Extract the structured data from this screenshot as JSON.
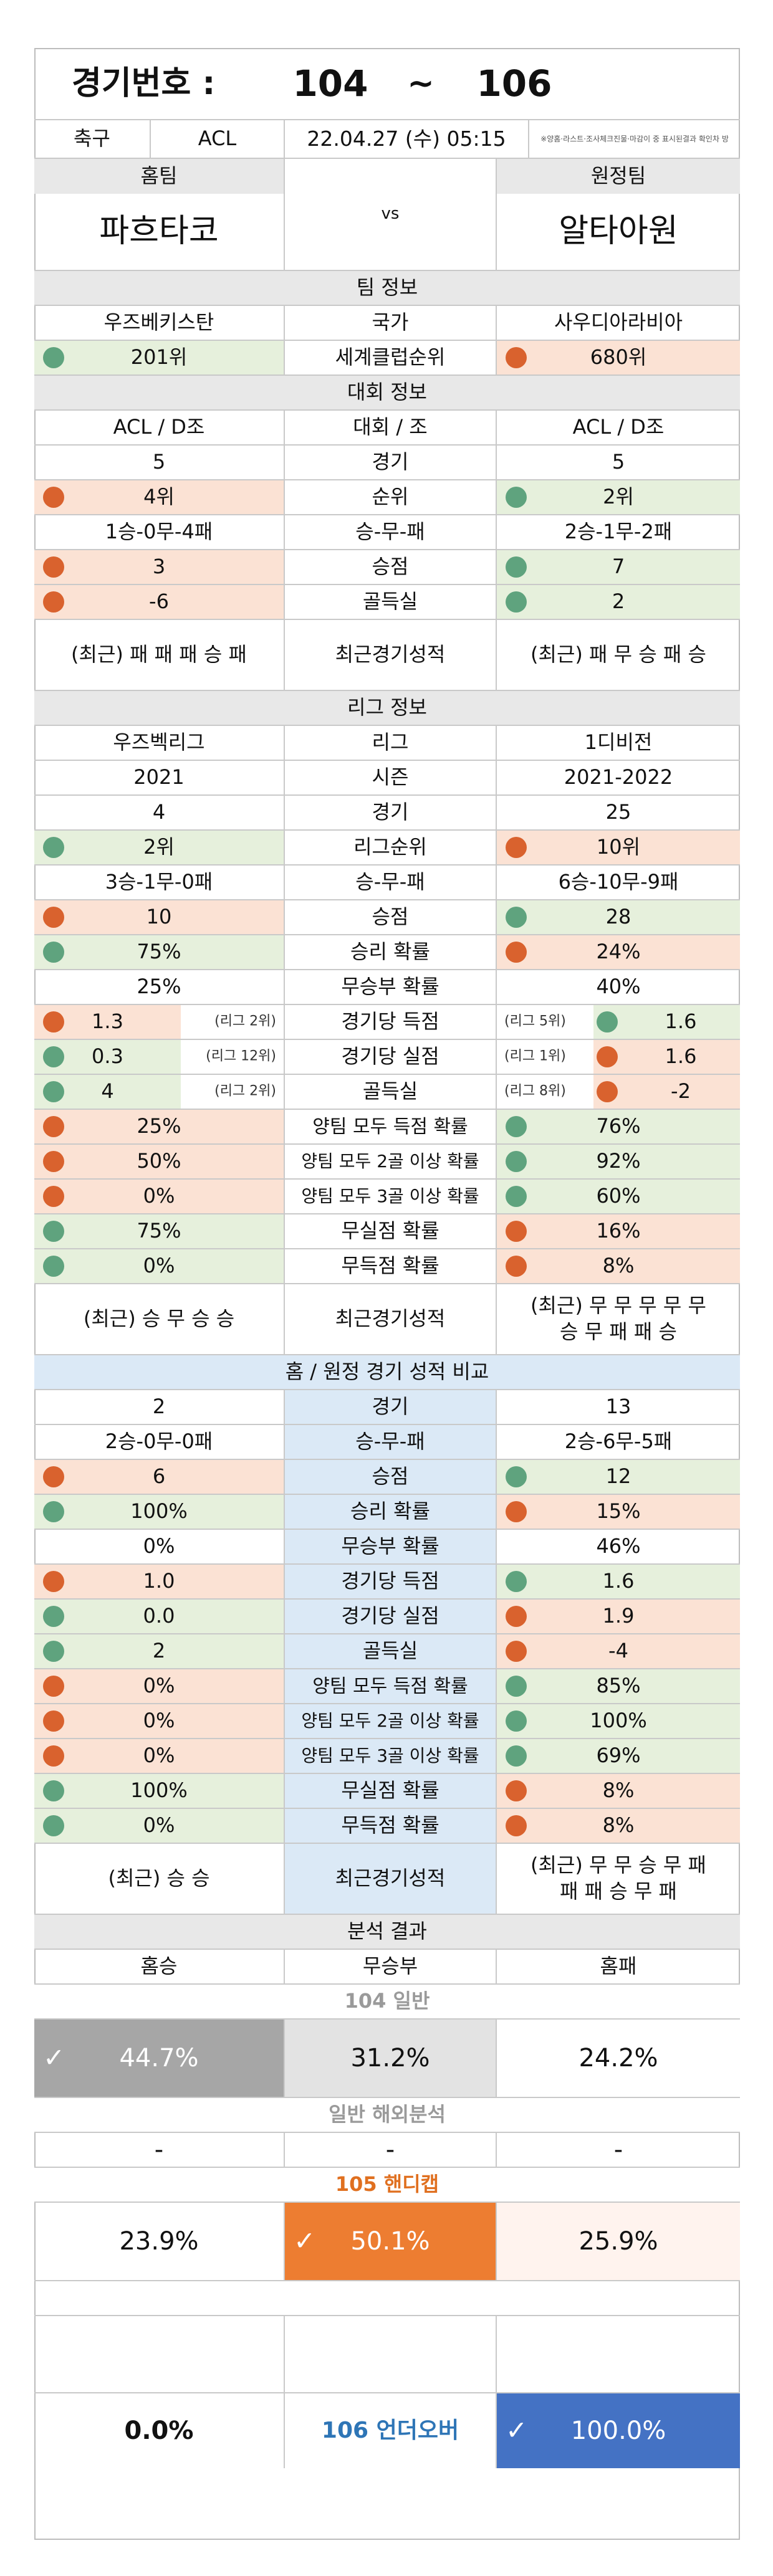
{
  "header": {
    "label": "경기번호 :",
    "from": "104",
    "tilde": "~",
    "to": "106"
  },
  "match": {
    "sport": "축구",
    "league": "ACL",
    "datetime": "22.04.27 (수) 05:15",
    "notice": "※양홈·라스트·조사체크진물·마감이 중 표시된결과 확인차 방"
  },
  "teams": {
    "home_label": "홈팀",
    "away_label": "원정팀",
    "home": "파흐타코",
    "vs": "vs",
    "away": "알타아원"
  },
  "team_info": {
    "title": "팀 정보",
    "country": {
      "home": "우즈베키스탄",
      "label": "국가",
      "away": "사우디아라비아"
    },
    "rank": {
      "home": "201위",
      "label": "세계클럽순위",
      "away": "680위"
    }
  },
  "tournament": {
    "title": "대회 정보",
    "group": {
      "home": "ACL / D조",
      "label": "대회 / 조",
      "away": "ACL / D조"
    },
    "games": {
      "home": "5",
      "label": "경기",
      "away": "5"
    },
    "position": {
      "home": "4위",
      "label": "순위",
      "away": "2위"
    },
    "record": {
      "home": "1승-0무-4패",
      "label": "승-무-패",
      "away": "2승-1무-2패"
    },
    "points": {
      "home": "3",
      "label": "승점",
      "away": "7"
    },
    "goal_diff": {
      "home": "-6",
      "label": "골득실",
      "away": "2"
    },
    "recent": {
      "home": "(최근) 패 패 패 승 패",
      "label": "최근경기성적",
      "away": "(최근) 패 무 승 패 승"
    }
  },
  "league": {
    "title": "리그 정보",
    "name": {
      "home": "우즈벡리그",
      "label": "리그",
      "away": "1디비전"
    },
    "season": {
      "home": "2021",
      "label": "시즌",
      "away": "2021-2022"
    },
    "games": {
      "home": "4",
      "label": "경기",
      "away": "25"
    },
    "position": {
      "home": "2위",
      "label": "리그순위",
      "away": "10위"
    },
    "record": {
      "home": "3승-1무-0패",
      "label": "승-무-패",
      "away": "6승-10무-9패"
    },
    "points": {
      "home": "10",
      "label": "승점",
      "away": "28"
    },
    "win_rate": {
      "home": "75%",
      "label": "승리 확률",
      "away": "24%"
    },
    "draw_rate": {
      "home": "25%",
      "label": "무승부 확률",
      "away": "40%"
    },
    "goals_for": {
      "home": "1.3",
      "home_rank": "(리그 2위)",
      "label": "경기당 득점",
      "away_rank": "(리그 5위)",
      "away": "1.6"
    },
    "goals_against": {
      "home": "0.3",
      "home_rank": "(리그 12위)",
      "label": "경기당 실점",
      "away_rank": "(리그 1위)",
      "away": "1.6"
    },
    "goal_diff": {
      "home": "4",
      "home_rank": "(리그 2위)",
      "label": "골득실",
      "away_rank": "(리그 8위)",
      "away": "-2"
    },
    "btts": {
      "home": "25%",
      "label": "양팀 모두 득점 확률",
      "away": "76%"
    },
    "btts2": {
      "home": "50%",
      "label": "양팀 모두 2골 이상 확률",
      "away": "92%"
    },
    "btts3": {
      "home": "0%",
      "label": "양팀 모두 3골 이상 확률",
      "away": "60%"
    },
    "clean_sheet": {
      "home": "75%",
      "label": "무실점 확률",
      "away": "16%"
    },
    "no_goal": {
      "home": "0%",
      "label": "무득점 확률",
      "away": "8%"
    },
    "recent": {
      "home": "(최근) 승 무 승 승",
      "label": "최근경기성적",
      "away": "(최근) 무 무 무 무 무\n승 무 패 패 승"
    }
  },
  "homeaway": {
    "title": "홈 / 원정 경기 성적 비교",
    "games": {
      "home": "2",
      "label": "경기",
      "away": "13"
    },
    "record": {
      "home": "2승-0무-0패",
      "label": "승-무-패",
      "away": "2승-6무-5패"
    },
    "points": {
      "home": "6",
      "label": "승점",
      "away": "12"
    },
    "win_rate": {
      "home": "100%",
      "label": "승리 확률",
      "away": "15%"
    },
    "draw_rate": {
      "home": "0%",
      "label": "무승부 확률",
      "away": "46%"
    },
    "goals_for": {
      "home": "1.0",
      "label": "경기당 득점",
      "away": "1.6"
    },
    "goals_against": {
      "home": "0.0",
      "label": "경기당 실점",
      "away": "1.9"
    },
    "goal_diff": {
      "home": "2",
      "label": "골득실",
      "away": "-4"
    },
    "btts": {
      "home": "0%",
      "label": "양팀 모두 득점 확률",
      "away": "85%"
    },
    "btts2": {
      "home": "0%",
      "label": "양팀 모두 2골 이상 확률",
      "away": "100%"
    },
    "btts3": {
      "home": "0%",
      "label": "양팀 모두 3골 이상 확률",
      "away": "69%"
    },
    "clean_sheet": {
      "home": "100%",
      "label": "무실점 확률",
      "away": "8%"
    },
    "no_goal": {
      "home": "0%",
      "label": "무득점 확률",
      "away": "8%"
    },
    "recent": {
      "home": "(최근) 승 승",
      "label": "최근경기성적",
      "away": "(최근) 무 무 승 무 패\n패 패 승 무 패"
    }
  },
  "analysis": {
    "title": "분석 결과",
    "col_home": "홈승",
    "col_draw": "무승부",
    "col_away": "홈패",
    "general_label": "104 일반",
    "general": {
      "home": "44.7%",
      "draw": "31.2%",
      "away": "24.2%"
    },
    "overseas_label": "일반 해외분석",
    "overseas": {
      "home": "-",
      "draw": "-",
      "away": "-"
    },
    "handicap_label": "105 핸디캡",
    "handicap": {
      "home": "23.9%",
      "draw": "50.1%",
      "away": "25.9%"
    },
    "underover": {
      "under": "0.0%",
      "label": "106 언더오버",
      "over": "100.0%"
    }
  },
  "colors": {
    "green_bg": "#e6f0dc",
    "orange_bg": "#fbe2d4",
    "green_dot": "#5fa37e",
    "orange_dot": "#d9622e",
    "header_grey": "#e8e8e8",
    "blue_bg": "#dbe9f6",
    "pick_grey": "#a6a6a6",
    "pick_orange": "#ed7d31",
    "pick_blue": "#4472c4",
    "handicap_text": "#e07020",
    "underover_text": "#2e75b6"
  },
  "icons": {
    "pick": "checkmark-icon",
    "indicator": "status-dot"
  }
}
